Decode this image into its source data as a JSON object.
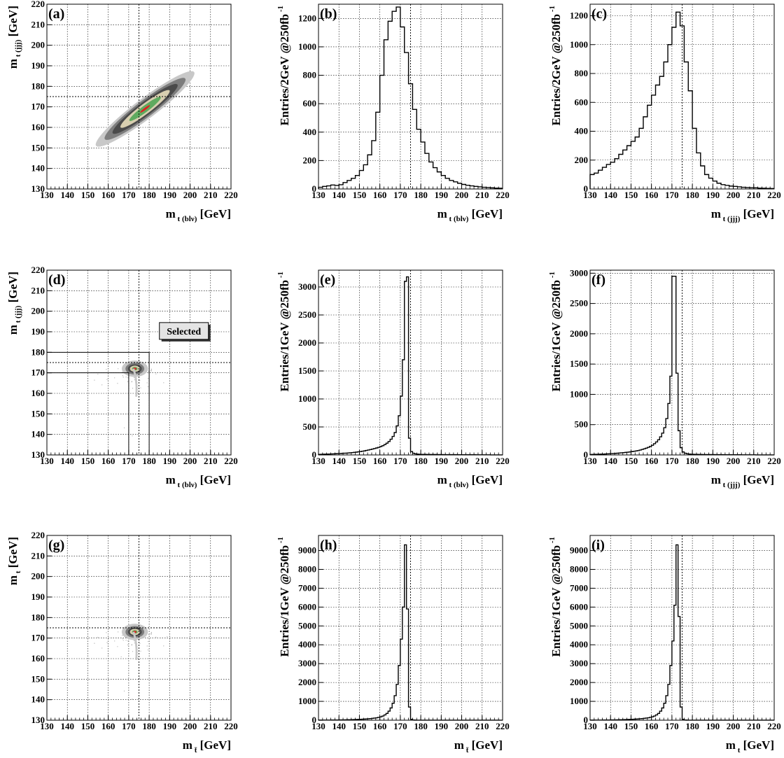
{
  "colors": {
    "contour_outer": "#c8c8c8",
    "contour_mid": "#7d7d7d",
    "contour_inner": "#4a4a4a",
    "contour_tan": "#d8cfb0",
    "contour_green": "#5faa5f",
    "contour_red": "#e02020"
  },
  "chart_data": [
    {
      "id": "a",
      "type": "heatmap",
      "panel_label": "(a)",
      "xlabel": {
        "main": "m",
        "sub": "t (blν)",
        "unit": "[GeV]"
      },
      "ylabel": {
        "main": "m",
        "sub": "t (jjj)",
        "unit": "[GeV]"
      },
      "xlim": [
        130,
        220
      ],
      "ylim": [
        130,
        220
      ],
      "xticks": [
        130,
        140,
        150,
        160,
        170,
        180,
        190,
        200,
        210,
        220
      ],
      "yticks": [
        130,
        140,
        150,
        160,
        170,
        180,
        190,
        200,
        210,
        220
      ],
      "ref_x": 175,
      "ref_y": 175,
      "blob": {
        "cx": 178,
        "cy": 169,
        "major": 30,
        "minor": 5,
        "angle_deg": -37
      },
      "grid": true
    },
    {
      "id": "b",
      "type": "histogram",
      "panel_label": "(b)",
      "xlabel": {
        "main": "m",
        "sub": "t (blν)",
        "unit": "[GeV]"
      },
      "ylabel": {
        "text": "Entries/2GeV @250fb",
        "sup": "-1"
      },
      "xlim": [
        130,
        220
      ],
      "ylim": [
        0,
        1300
      ],
      "xticks": [
        130,
        140,
        150,
        160,
        170,
        180,
        190,
        200,
        210,
        220
      ],
      "yticks": [
        0,
        200,
        400,
        600,
        800,
        1000,
        1200
      ],
      "ref_x": 175,
      "bin_start": 130,
      "bin_width": 2,
      "values": [
        12,
        18,
        22,
        28,
        25,
        30,
        45,
        60,
        75,
        95,
        130,
        170,
        240,
        340,
        540,
        800,
        1050,
        1180,
        1250,
        1280,
        1140,
        960,
        740,
        560,
        420,
        330,
        250,
        190,
        150,
        120,
        95,
        75,
        60,
        50,
        40,
        32,
        26,
        22,
        18,
        15,
        12,
        10,
        8,
        6,
        5
      ],
      "grid": true
    },
    {
      "id": "c",
      "type": "histogram",
      "panel_label": "(c)",
      "xlabel": {
        "main": "m",
        "sub": "t (jjj)",
        "unit": "[GeV]"
      },
      "ylabel": {
        "text": "Entries/2GeV @250fb",
        "sup": "-1"
      },
      "xlim": [
        130,
        220
      ],
      "ylim": [
        0,
        1280
      ],
      "xticks": [
        130,
        140,
        150,
        160,
        170,
        180,
        190,
        200,
        210,
        220
      ],
      "yticks": [
        0,
        200,
        400,
        600,
        800,
        1000,
        1200
      ],
      "ref_x": 175,
      "bin_start": 130,
      "bin_width": 2,
      "values": [
        100,
        110,
        130,
        150,
        170,
        185,
        210,
        240,
        270,
        300,
        330,
        360,
        420,
        500,
        580,
        650,
        720,
        780,
        880,
        1000,
        1120,
        1225,
        1130,
        880,
        680,
        420,
        250,
        160,
        100,
        75,
        55,
        40,
        30,
        25,
        20,
        18,
        15,
        12,
        10,
        9,
        8,
        6,
        5,
        4,
        3
      ],
      "grid": true
    },
    {
      "id": "d",
      "type": "heatmap",
      "panel_label": "(d)",
      "xlabel": {
        "main": "m",
        "sub": "t (blν)",
        "unit": "[GeV]"
      },
      "ylabel": {
        "main": "m",
        "sub": "t (jjj)",
        "unit": "[GeV]"
      },
      "xlim": [
        130,
        220
      ],
      "ylim": [
        130,
        220
      ],
      "xticks": [
        130,
        140,
        150,
        160,
        170,
        180,
        190,
        200,
        210,
        220
      ],
      "yticks": [
        130,
        140,
        150,
        160,
        170,
        180,
        190,
        200,
        210,
        220
      ],
      "ref_x": 175,
      "ref_y": 175,
      "blob": {
        "cx": 173,
        "cy": 172,
        "major": 4,
        "minor": 2.5,
        "angle_deg": 0
      },
      "selection": {
        "outer_x": 180,
        "outer_y": 180,
        "inner_x": 170,
        "inner_y": 170
      },
      "annotation": {
        "text": "Selected",
        "x": 185,
        "y": 188
      },
      "grid": true
    },
    {
      "id": "e",
      "type": "histogram",
      "panel_label": "(e)",
      "xlabel": {
        "main": "m",
        "sub": "t (blν)",
        "unit": "[GeV]"
      },
      "ylabel": {
        "text": "Entries/1GeV @250fb",
        "sup": "-1"
      },
      "xlim": [
        130,
        220
      ],
      "ylim": [
        0,
        3300
      ],
      "xticks": [
        130,
        140,
        150,
        160,
        170,
        180,
        190,
        200,
        210,
        220
      ],
      "yticks": [
        0,
        500,
        1000,
        1500,
        2000,
        2500,
        3000
      ],
      "ref_x": 175,
      "bin_start": 130,
      "bin_width": 1,
      "values": [
        10,
        12,
        13,
        14,
        15,
        16,
        18,
        20,
        22,
        24,
        26,
        28,
        30,
        32,
        35,
        38,
        42,
        46,
        50,
        55,
        60,
        66,
        72,
        80,
        88,
        96,
        105,
        115,
        125,
        135,
        150,
        165,
        185,
        210,
        240,
        280,
        330,
        400,
        520,
        700,
        1050,
        1700,
        3100,
        3180,
        300,
        60,
        30,
        20,
        15,
        12,
        10,
        10,
        10,
        9,
        9,
        8,
        8,
        8,
        7,
        7,
        7,
        6,
        6,
        6,
        5,
        5,
        5,
        5,
        4,
        4,
        4,
        4,
        3,
        3,
        3,
        3,
        3,
        2,
        2,
        2,
        2,
        2,
        2,
        2,
        1,
        1,
        1,
        1,
        1,
        1
      ],
      "grid": true
    },
    {
      "id": "f",
      "type": "histogram",
      "panel_label": "(f)",
      "xlabel": {
        "main": "m",
        "sub": "t (jjj)",
        "unit": "[GeV]"
      },
      "ylabel": {
        "text": "Entries/1GeV @250fb",
        "sup": "-1"
      },
      "xlim": [
        130,
        220
      ],
      "ylim": [
        0,
        3050
      ],
      "xticks": [
        130,
        140,
        150,
        160,
        170,
        180,
        190,
        200,
        210,
        220
      ],
      "yticks": [
        0,
        500,
        1000,
        1500,
        2000,
        2500,
        3000
      ],
      "ref_x": 175,
      "bin_start": 130,
      "bin_width": 1,
      "values": [
        8,
        9,
        10,
        11,
        12,
        13,
        14,
        16,
        18,
        20,
        22,
        24,
        26,
        29,
        32,
        35,
        38,
        42,
        46,
        50,
        55,
        60,
        66,
        72,
        80,
        90,
        100,
        112,
        125,
        140,
        160,
        185,
        215,
        250,
        300,
        360,
        450,
        600,
        850,
        1300,
        2950,
        2950,
        1350,
        400,
        120,
        50,
        30,
        20,
        15,
        12,
        10,
        9,
        9,
        8,
        8,
        7,
        7,
        7,
        6,
        6,
        6,
        5,
        5,
        5,
        5,
        4,
        4,
        4,
        4,
        3,
        3,
        3,
        3,
        3,
        2,
        2,
        2,
        2,
        2,
        2,
        2,
        1,
        1,
        1,
        1,
        1,
        1,
        1,
        1,
        1
      ],
      "grid": true
    },
    {
      "id": "g",
      "type": "heatmap",
      "panel_label": "(g)",
      "xlabel": {
        "main": "m",
        "sub": "t̄",
        "unit": "[GeV]"
      },
      "ylabel": {
        "main": "m",
        "sub": "t",
        "unit": "[GeV]"
      },
      "xlim": [
        130,
        220
      ],
      "ylim": [
        130,
        220
      ],
      "xticks": [
        130,
        140,
        150,
        160,
        170,
        180,
        190,
        200,
        210,
        220
      ],
      "yticks": [
        130,
        140,
        150,
        160,
        170,
        180,
        190,
        200,
        210,
        220
      ],
      "ref_x": 175,
      "ref_y": 175,
      "blob": {
        "cx": 173,
        "cy": 173,
        "major": 4,
        "minor": 2.5,
        "angle_deg": 0
      },
      "grid": true
    },
    {
      "id": "h",
      "type": "histogram",
      "panel_label": "(h)",
      "xlabel": {
        "main": "m",
        "sub": "t̄",
        "unit": "[GeV]"
      },
      "ylabel": {
        "text": "Entries/1GeV @250fb",
        "sup": "-1"
      },
      "xlim": [
        130,
        220
      ],
      "ylim": [
        0,
        9800
      ],
      "xticks": [
        130,
        140,
        150,
        160,
        170,
        180,
        190,
        200,
        210,
        220
      ],
      "yticks": [
        0,
        1000,
        2000,
        3000,
        4000,
        5000,
        6000,
        7000,
        8000,
        9000
      ],
      "ref_x": 175,
      "bin_start": 130,
      "bin_width": 1,
      "values": [
        5,
        5,
        6,
        6,
        7,
        8,
        9,
        10,
        11,
        12,
        14,
        16,
        18,
        20,
        23,
        26,
        30,
        34,
        38,
        43,
        48,
        54,
        60,
        68,
        76,
        86,
        98,
        112,
        128,
        150,
        180,
        220,
        280,
        360,
        480,
        650,
        900,
        1300,
        1900,
        2900,
        4300,
        6000,
        9300,
        5900,
        700,
        50,
        10,
        5,
        4,
        3,
        3,
        3,
        2,
        2,
        2,
        2,
        2,
        2,
        2,
        1,
        1,
        1,
        1,
        1,
        1,
        1,
        1,
        1,
        1,
        1,
        1,
        1,
        1,
        1,
        1,
        1,
        1,
        1,
        1,
        1,
        1,
        1,
        1,
        1,
        1,
        1,
        1,
        1,
        1,
        1
      ],
      "grid": true
    },
    {
      "id": "i",
      "type": "histogram",
      "panel_label": "(i)",
      "xlabel": {
        "main": "m",
        "sub": "t",
        "unit": "[GeV]"
      },
      "ylabel": {
        "text": "Entries/1GeV @250fb",
        "sup": "-1"
      },
      "xlim": [
        130,
        220
      ],
      "ylim": [
        0,
        9800
      ],
      "xticks": [
        130,
        140,
        150,
        160,
        170,
        180,
        190,
        200,
        210,
        220
      ],
      "yticks": [
        0,
        1000,
        2000,
        3000,
        4000,
        5000,
        6000,
        7000,
        8000,
        9000
      ],
      "ref_x": 175,
      "bin_start": 130,
      "bin_width": 1,
      "values": [
        5,
        5,
        6,
        6,
        7,
        8,
        9,
        10,
        11,
        12,
        14,
        16,
        18,
        20,
        23,
        26,
        30,
        34,
        38,
        43,
        48,
        54,
        60,
        68,
        76,
        86,
        98,
        112,
        128,
        150,
        180,
        220,
        280,
        360,
        480,
        650,
        900,
        1300,
        1900,
        2900,
        4200,
        6100,
        9300,
        5500,
        700,
        50,
        10,
        5,
        4,
        3,
        3,
        3,
        2,
        2,
        2,
        2,
        2,
        2,
        2,
        1,
        1,
        1,
        1,
        1,
        1,
        1,
        1,
        1,
        1,
        1,
        1,
        1,
        1,
        1,
        1,
        1,
        1,
        1,
        1,
        1,
        1,
        1,
        1,
        1,
        1,
        1,
        1,
        1,
        1,
        1
      ],
      "grid": true
    }
  ]
}
